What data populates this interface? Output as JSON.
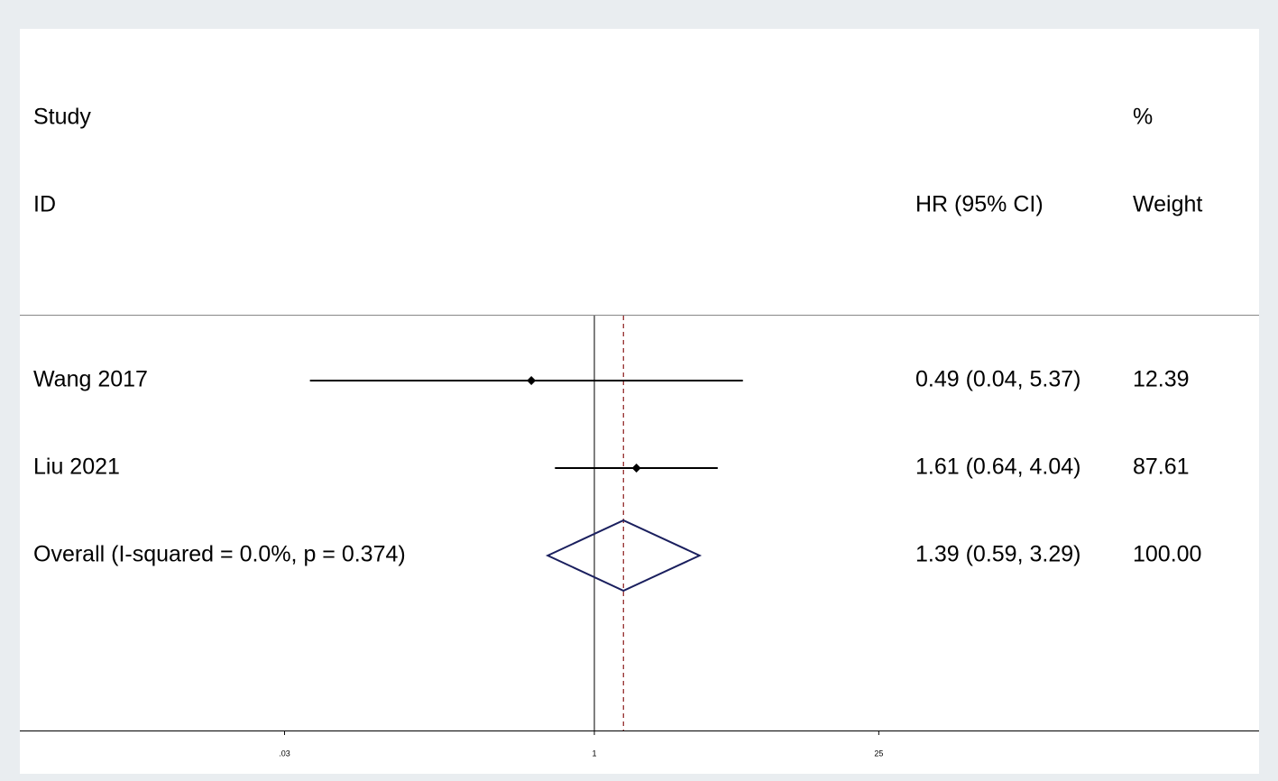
{
  "chart_data": {
    "type": "forest",
    "headers": {
      "study_top": "Study",
      "study_bottom": "ID",
      "estimate": "HR (95% CI)",
      "weight_top": "%",
      "weight_bottom": "Weight"
    },
    "categories": [
      "Wang 2017",
      "Liu 2021",
      "Overall  (I-squared = 0.0%, p = 0.374)"
    ],
    "values": [
      0.49,
      1.61,
      1.39
    ],
    "lower": [
      0.04,
      0.64,
      0.59
    ],
    "upper": [
      5.37,
      4.04,
      3.29
    ],
    "value_labels": [
      "0.49 (0.04, 5.37)",
      "1.61 (0.64, 4.04)",
      "1.39 (0.59, 3.29)"
    ],
    "weights": [
      12.39,
      87.61,
      {
        "value": 100,
        "label": "100.00"
      }
    ],
    "log_scale": true,
    "xlim": [
      0.0015,
      1850
    ],
    "xticks": [
      {
        "value": 0.03,
        "label": ".03"
      },
      1,
      25
    ],
    "reference_line": 1,
    "color": "#000000",
    "diamond_color": "#1a1f5e",
    "overall_line_color": "#8b1a1a"
  }
}
